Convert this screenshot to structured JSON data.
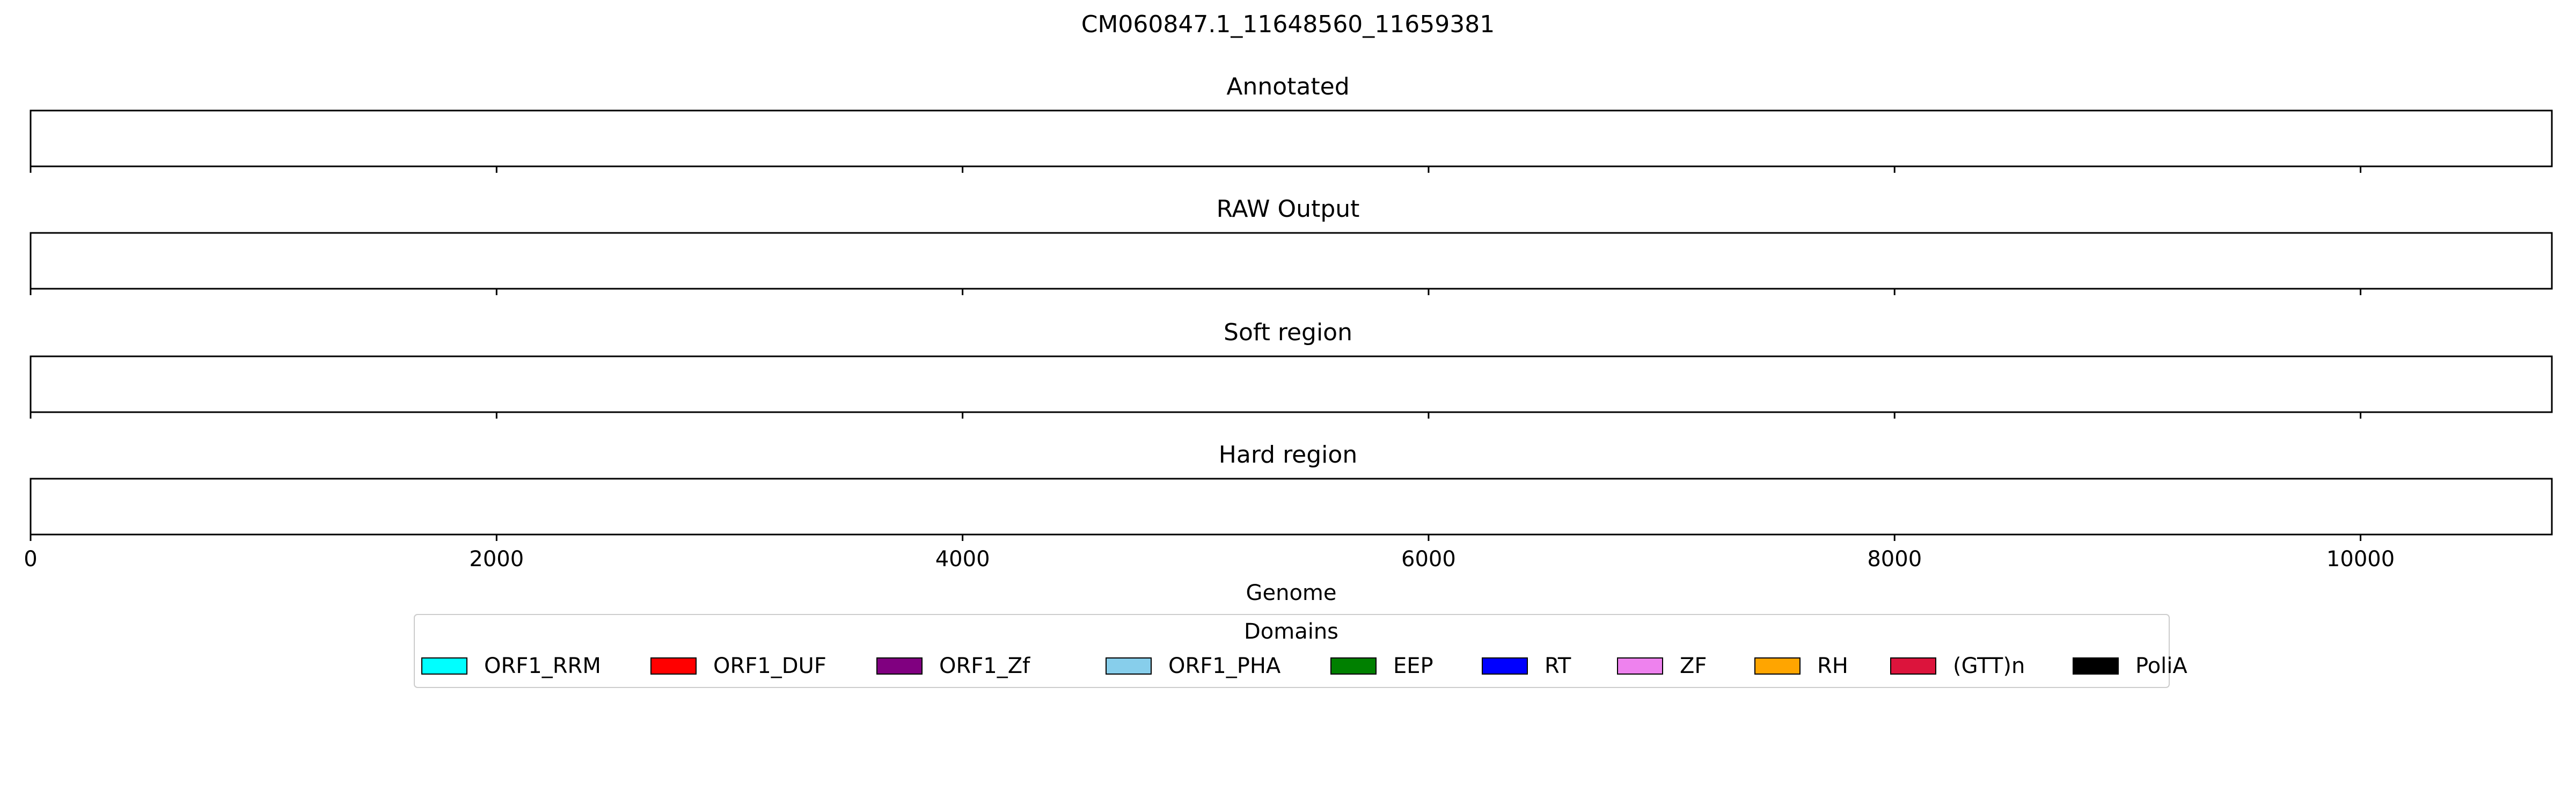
{
  "chart_data": {
    "type": "genome-track",
    "title": "CM060847.1_11648560_11659381",
    "xlabel": "Genome",
    "xlim": [
      0,
      10821
    ],
    "xticks": [
      "0",
      "2000",
      "4000",
      "6000",
      "8000",
      "10000"
    ],
    "tracks": [
      {
        "title": "Annotated",
        "segments": []
      },
      {
        "title": "RAW Output",
        "segments": []
      },
      {
        "title": "Soft region",
        "segments": []
      },
      {
        "title": "Hard region",
        "segments": []
      }
    ],
    "legend": {
      "title": "Domains",
      "placement": "bottom-center",
      "entries": [
        {
          "label": "ORF1_RRM",
          "color": "#00FFFF"
        },
        {
          "label": "ORF1_DUF",
          "color": "#FF0000"
        },
        {
          "label": "ORF1_Zf",
          "color": "#800080"
        },
        {
          "label": "ORF1_PHA",
          "color": "#87CEEB"
        },
        {
          "label": "EEP",
          "color": "#008000"
        },
        {
          "label": "RT",
          "color": "#0000FF"
        },
        {
          "label": "ZF",
          "color": "#EE82EE"
        },
        {
          "label": "RH",
          "color": "#FFA500"
        },
        {
          "label": "(GTT)n",
          "color": "#DC143C"
        },
        {
          "label": "PoliA",
          "color": "#000000"
        }
      ]
    }
  }
}
